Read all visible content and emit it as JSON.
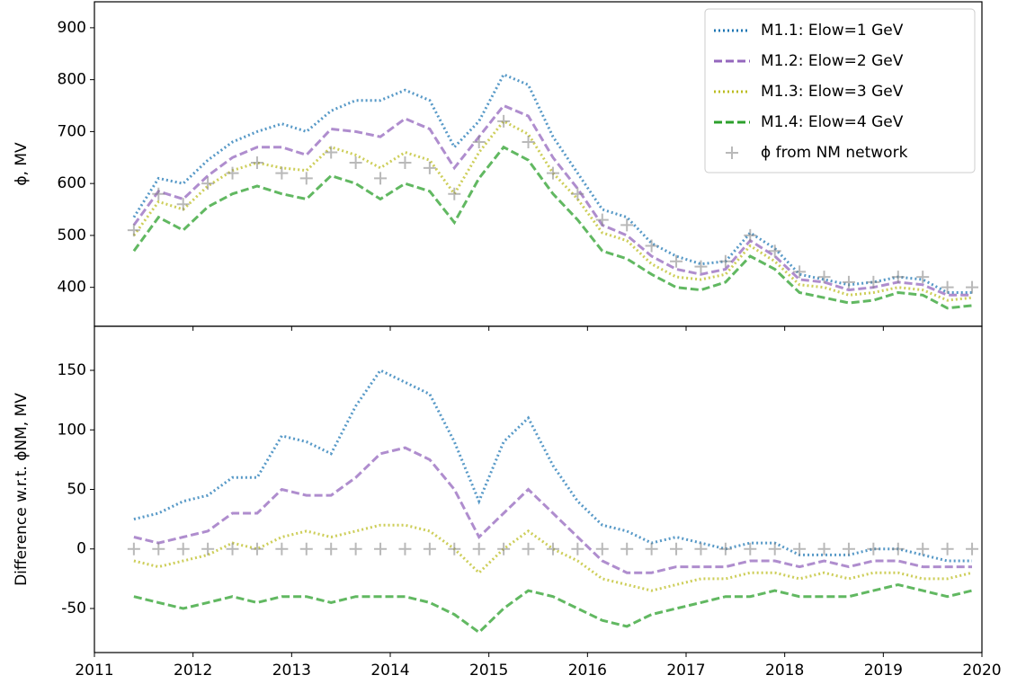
{
  "chart_data": [
    {
      "type": "line",
      "ylabel": "ϕ, MV",
      "x": [
        2011.4,
        2011.65,
        2011.9,
        2012.15,
        2012.4,
        2012.65,
        2012.9,
        2013.15,
        2013.4,
        2013.65,
        2013.9,
        2014.15,
        2014.4,
        2014.65,
        2014.9,
        2015.15,
        2015.4,
        2015.65,
        2015.9,
        2016.15,
        2016.4,
        2016.65,
        2016.9,
        2017.15,
        2017.4,
        2017.65,
        2017.9,
        2018.15,
        2018.4,
        2018.65,
        2018.9,
        2019.15,
        2019.4,
        2019.65,
        2019.9
      ],
      "xlim": [
        2011,
        2020
      ],
      "xticks": [
        2011,
        2012,
        2013,
        2014,
        2015,
        2016,
        2017,
        2018,
        2019,
        2020
      ],
      "ylim": [
        325,
        950
      ],
      "yticks": [
        400,
        500,
        600,
        700,
        800,
        900
      ],
      "legend": "upper right",
      "series": [
        {
          "name": "M1.1: Elow=1 GeV",
          "color": "#1f77b4",
          "linestyle": "dotted",
          "values": [
            535,
            610,
            600,
            645,
            680,
            700,
            715,
            700,
            740,
            760,
            760,
            780,
            760,
            670,
            720,
            810,
            790,
            690,
            620,
            550,
            535,
            485,
            460,
            445,
            450,
            505,
            475,
            425,
            415,
            405,
            410,
            420,
            415,
            390,
            390
          ]
        },
        {
          "name": "M1.2: Elow=2 GeV",
          "color": "#9467bd",
          "linestyle": "dashed",
          "values": [
            520,
            585,
            570,
            615,
            650,
            670,
            670,
            655,
            705,
            700,
            690,
            725,
            705,
            630,
            690,
            750,
            730,
            650,
            590,
            520,
            500,
            460,
            435,
            425,
            435,
            490,
            460,
            415,
            410,
            395,
            400,
            410,
            405,
            385,
            385
          ]
        },
        {
          "name": "M1.3: Elow=3 GeV",
          "color": "#bcbd22",
          "linestyle": "dotted",
          "values": [
            500,
            565,
            550,
            595,
            625,
            640,
            630,
            625,
            670,
            655,
            630,
            660,
            645,
            580,
            660,
            720,
            695,
            620,
            570,
            505,
            490,
            445,
            420,
            415,
            425,
            480,
            450,
            405,
            400,
            385,
            390,
            400,
            395,
            375,
            380
          ]
        },
        {
          "name": "M1.4: Elow=4 GeV",
          "color": "#2ca02c",
          "linestyle": "dashed",
          "values": [
            470,
            535,
            510,
            555,
            580,
            595,
            580,
            570,
            615,
            600,
            570,
            600,
            585,
            525,
            610,
            670,
            645,
            580,
            530,
            470,
            455,
            425,
            400,
            395,
            410,
            460,
            435,
            390,
            380,
            370,
            375,
            390,
            385,
            360,
            365
          ]
        },
        {
          "name": "ϕ from NM network",
          "color": "#808080",
          "marker": "+",
          "values": [
            510,
            580,
            560,
            600,
            620,
            640,
            620,
            610,
            660,
            640,
            610,
            640,
            630,
            580,
            680,
            720,
            680,
            620,
            580,
            530,
            520,
            480,
            450,
            440,
            450,
            500,
            470,
            430,
            420,
            410,
            410,
            420,
            420,
            400,
            400
          ]
        }
      ]
    },
    {
      "type": "line",
      "ylabel": "Difference w.r.t. ϕNM, MV",
      "x": [
        2011.4,
        2011.65,
        2011.9,
        2012.15,
        2012.4,
        2012.65,
        2012.9,
        2013.15,
        2013.4,
        2013.65,
        2013.9,
        2014.15,
        2014.4,
        2014.65,
        2014.9,
        2015.15,
        2015.4,
        2015.65,
        2015.9,
        2016.15,
        2016.4,
        2016.65,
        2016.9,
        2017.15,
        2017.4,
        2017.65,
        2017.9,
        2018.15,
        2018.4,
        2018.65,
        2018.9,
        2019.15,
        2019.4,
        2019.65,
        2019.9
      ],
      "xlim": [
        2011,
        2020
      ],
      "xticks": [
        2011,
        2012,
        2013,
        2014,
        2015,
        2016,
        2017,
        2018,
        2019,
        2020
      ],
      "ylim": [
        -87,
        187
      ],
      "yticks": [
        -50,
        0,
        50,
        100,
        150
      ],
      "series": [
        {
          "color": "#1f77b4",
          "linestyle": "dotted",
          "values": [
            25,
            30,
            40,
            45,
            60,
            60,
            95,
            90,
            80,
            120,
            150,
            140,
            130,
            90,
            40,
            90,
            110,
            70,
            40,
            20,
            15,
            5,
            10,
            5,
            0,
            5,
            5,
            -5,
            -5,
            -5,
            0,
            0,
            -5,
            -10,
            -10
          ]
        },
        {
          "color": "#9467bd",
          "linestyle": "dashed",
          "values": [
            10,
            5,
            10,
            15,
            30,
            30,
            50,
            45,
            45,
            60,
            80,
            85,
            75,
            50,
            10,
            30,
            50,
            30,
            10,
            -10,
            -20,
            -20,
            -15,
            -15,
            -15,
            -10,
            -10,
            -15,
            -10,
            -15,
            -10,
            -10,
            -15,
            -15,
            -15
          ]
        },
        {
          "color": "#bcbd22",
          "linestyle": "dotted",
          "values": [
            -10,
            -15,
            -10,
            -5,
            5,
            0,
            10,
            15,
            10,
            15,
            20,
            20,
            15,
            0,
            -20,
            0,
            15,
            0,
            -10,
            -25,
            -30,
            -35,
            -30,
            -25,
            -25,
            -20,
            -20,
            -25,
            -20,
            -25,
            -20,
            -20,
            -25,
            -25,
            -20
          ]
        },
        {
          "color": "#2ca02c",
          "linestyle": "dashed",
          "values": [
            -40,
            -45,
            -50,
            -45,
            -40,
            -45,
            -40,
            -40,
            -45,
            -40,
            -40,
            -40,
            -45,
            -55,
            -70,
            -50,
            -35,
            -40,
            -50,
            -60,
            -65,
            -55,
            -50,
            -45,
            -40,
            -40,
            -35,
            -40,
            -40,
            -40,
            -35,
            -30,
            -35,
            -40,
            -35
          ]
        },
        {
          "color": "#808080",
          "marker": "+",
          "values": [
            0,
            0,
            0,
            0,
            0,
            0,
            0,
            0,
            0,
            0,
            0,
            0,
            0,
            0,
            0,
            0,
            0,
            0,
            0,
            0,
            0,
            0,
            0,
            0,
            0,
            0,
            0,
            0,
            0,
            0,
            0,
            0,
            0,
            0,
            0
          ]
        }
      ]
    }
  ]
}
